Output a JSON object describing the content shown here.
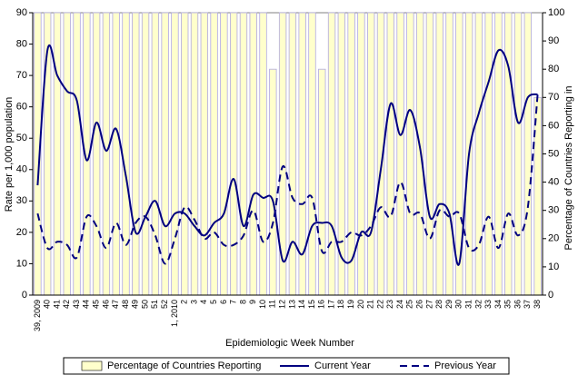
{
  "chart_data": {
    "type": "bar-line",
    "xlabel": "Epidemiologic Week Number",
    "ylabel": "Rate per 1,000 population",
    "y2label": "Percentage of Countries Reporting  in",
    "categories": [
      "39, 2009",
      "40",
      "41",
      "42",
      "43",
      "44",
      "45",
      "46",
      "47",
      "48",
      "49",
      "50",
      "51",
      "52",
      "1, 2010",
      "2",
      "3",
      "4",
      "5",
      "6",
      "7",
      "8",
      "9",
      "10",
      "11",
      "12",
      "13",
      "14",
      "15",
      "16",
      "17",
      "18",
      "19",
      "20",
      "21",
      "22",
      "23",
      "24",
      "25",
      "26",
      "27",
      "28",
      "29",
      "30",
      "31",
      "32",
      "33",
      "34",
      "35",
      "36",
      "37",
      "38"
    ],
    "ylim": [
      0,
      90
    ],
    "yticks": [
      0,
      10,
      20,
      30,
      40,
      50,
      60,
      70,
      80,
      90
    ],
    "y2lim": [
      0,
      100
    ],
    "y2ticks": [
      0,
      10,
      20,
      30,
      40,
      50,
      60,
      70,
      80,
      90,
      100
    ],
    "series": [
      {
        "name": "Percentage of Countries Reporting",
        "kind": "bar",
        "axis": "y2",
        "color": "#ffffcc",
        "values": [
          100,
          100,
          100,
          100,
          100,
          100,
          100,
          100,
          100,
          100,
          100,
          100,
          100,
          100,
          100,
          100,
          100,
          100,
          100,
          100,
          100,
          100,
          100,
          100,
          80,
          100,
          100,
          100,
          100,
          80,
          100,
          100,
          100,
          100,
          100,
          100,
          100,
          100,
          100,
          100,
          100,
          100,
          100,
          100,
          100,
          100,
          100,
          100,
          100,
          100,
          100,
          70
        ]
      },
      {
        "name": "Current Year",
        "kind": "line",
        "style": "solid",
        "color": "#000080",
        "values": [
          35,
          78,
          70,
          65,
          62,
          43,
          55,
          46,
          53,
          38,
          20,
          25,
          30,
          22,
          26,
          26,
          22,
          19,
          23,
          26,
          37,
          22,
          32,
          31,
          30,
          11,
          17,
          13,
          22,
          23,
          22,
          12,
          11,
          20,
          20,
          40,
          61,
          51,
          59,
          47,
          25,
          29,
          26,
          10,
          45,
          58,
          68,
          78,
          73,
          55,
          63,
          64
        ]
      },
      {
        "name": "Previous Year",
        "kind": "line",
        "style": "dashed",
        "color": "#000080",
        "values": [
          26,
          15,
          17,
          16,
          12,
          25,
          22,
          15,
          23,
          16,
          23,
          25,
          19,
          10,
          18,
          28,
          24,
          18,
          20,
          16,
          16,
          19,
          27,
          17,
          23,
          41,
          31,
          29,
          31,
          14,
          17,
          17,
          20,
          19,
          22,
          28,
          25,
          36,
          26,
          26,
          18,
          27,
          25,
          26,
          15,
          16,
          25,
          15,
          26,
          19,
          28,
          64
        ]
      }
    ]
  }
}
